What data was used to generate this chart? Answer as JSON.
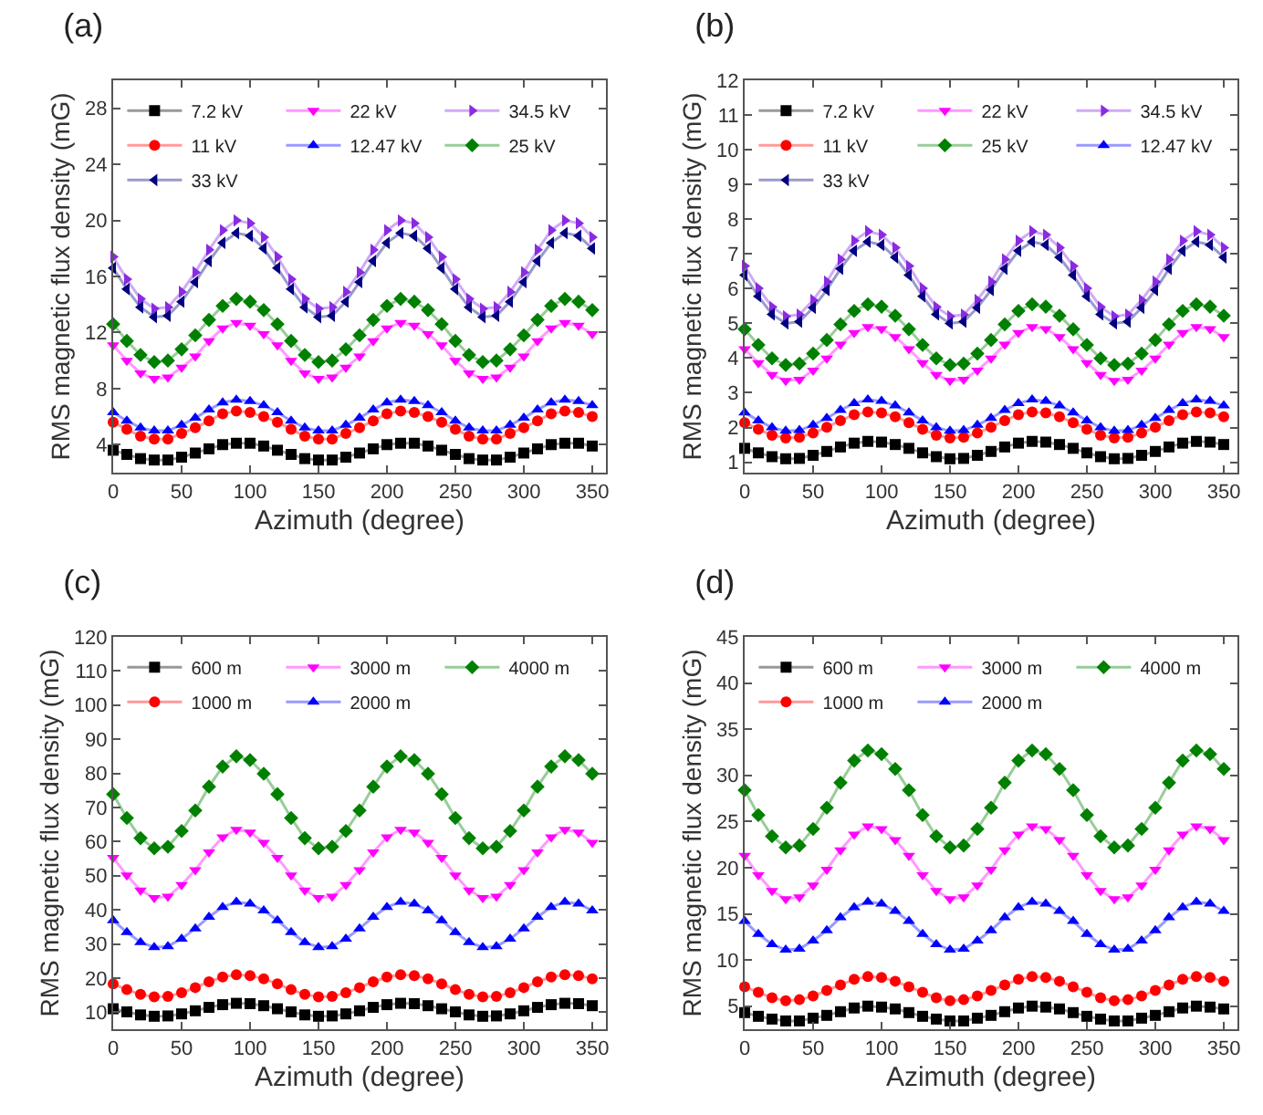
{
  "chart_data": [
    {
      "type": "line",
      "title": "(a)",
      "xlabel": "Azimuth (degree)",
      "ylabel": "RMS magnetic flux density (mG)",
      "x": [
        0,
        10,
        20,
        30,
        40,
        50,
        60,
        70,
        80,
        90,
        100,
        110,
        120,
        130,
        140,
        150,
        160,
        170,
        180,
        190,
        200,
        210,
        220,
        230,
        240,
        250,
        260,
        270,
        280,
        290,
        300,
        310,
        320,
        330,
        340,
        350
      ],
      "xlim": [
        0,
        360
      ],
      "xticks": [
        0,
        50,
        100,
        150,
        200,
        250,
        300,
        350
      ],
      "ylim": [
        2,
        30
      ],
      "yticks": [
        4,
        8,
        12,
        16,
        20,
        24,
        28
      ],
      "legend": "top left",
      "series": [
        {
          "name": "7.2 kV",
          "color": "#000000",
          "marker": "square",
          "values": [
            3.6,
            3.3,
            3.0,
            2.9,
            2.9,
            3.1,
            3.4,
            3.7,
            4.0,
            4.1,
            4.1,
            3.9,
            3.6,
            3.3,
            3.0,
            2.9,
            2.9,
            3.1,
            3.4,
            3.7,
            4.0,
            4.1,
            4.1,
            3.9,
            3.6,
            3.3,
            3.0,
            2.9,
            2.9,
            3.1,
            3.4,
            3.7,
            4.0,
            4.1,
            4.1,
            3.9
          ]
        },
        {
          "name": "22 kV",
          "color": "#ff00ff",
          "marker": "triangle-down",
          "values": [
            11.1,
            10.0,
            9.1,
            8.7,
            8.8,
            9.5,
            10.3,
            11.4,
            12.3,
            12.7,
            12.5,
            11.9,
            11.1,
            10.0,
            9.1,
            8.7,
            8.8,
            9.5,
            10.3,
            11.4,
            12.3,
            12.7,
            12.5,
            11.9,
            11.1,
            10.0,
            9.1,
            8.7,
            8.8,
            9.5,
            10.3,
            11.4,
            12.3,
            12.7,
            12.5,
            11.9
          ]
        },
        {
          "name": "34.5 kV",
          "color": "#8a2be2",
          "marker": "triangle-right",
          "values": [
            17.4,
            15.8,
            14.4,
            13.7,
            13.8,
            14.9,
            16.3,
            17.9,
            19.3,
            20.0,
            19.8,
            18.8,
            17.4,
            15.8,
            14.4,
            13.7,
            13.8,
            14.9,
            16.3,
            17.9,
            19.3,
            20.0,
            19.8,
            18.8,
            17.4,
            15.8,
            14.4,
            13.7,
            13.8,
            14.9,
            16.3,
            17.9,
            19.3,
            20.0,
            19.8,
            18.8
          ]
        },
        {
          "name": "11 kV",
          "color": "#ff0000",
          "marker": "circle",
          "values": [
            5.6,
            5.1,
            4.6,
            4.4,
            4.4,
            4.8,
            5.2,
            5.7,
            6.2,
            6.4,
            6.3,
            6.0,
            5.6,
            5.1,
            4.6,
            4.4,
            4.4,
            4.8,
            5.2,
            5.7,
            6.2,
            6.4,
            6.3,
            6.0,
            5.6,
            5.1,
            4.6,
            4.4,
            4.4,
            4.8,
            5.2,
            5.7,
            6.2,
            6.4,
            6.3,
            6.0
          ]
        },
        {
          "name": "12.47 kV",
          "color": "#0000ff",
          "marker": "triangle",
          "values": [
            6.3,
            5.7,
            5.2,
            5.0,
            5.0,
            5.4,
            5.9,
            6.5,
            7.0,
            7.2,
            7.1,
            6.8,
            6.3,
            5.7,
            5.2,
            5.0,
            5.0,
            5.4,
            5.9,
            6.5,
            7.0,
            7.2,
            7.1,
            6.8,
            6.3,
            5.7,
            5.2,
            5.0,
            5.0,
            5.4,
            5.9,
            6.5,
            7.0,
            7.2,
            7.1,
            6.8
          ]
        },
        {
          "name": "25 kV",
          "color": "#008000",
          "marker": "diamond",
          "values": [
            12.6,
            11.4,
            10.4,
            9.9,
            10.0,
            10.8,
            11.8,
            12.9,
            13.9,
            14.4,
            14.2,
            13.6,
            12.6,
            11.4,
            10.4,
            9.9,
            10.0,
            10.8,
            11.8,
            12.9,
            13.9,
            14.4,
            14.2,
            13.6,
            12.6,
            11.4,
            10.4,
            9.9,
            10.0,
            10.8,
            11.8,
            12.9,
            13.9,
            14.4,
            14.2,
            13.6
          ]
        },
        {
          "name": "33 kV",
          "color": "#000080",
          "marker": "triangle-left",
          "values": [
            16.6,
            15.1,
            13.8,
            13.1,
            13.2,
            14.2,
            15.6,
            17.1,
            18.4,
            19.1,
            18.9,
            18.0,
            16.6,
            15.1,
            13.8,
            13.1,
            13.2,
            14.2,
            15.6,
            17.1,
            18.4,
            19.1,
            18.9,
            18.0,
            16.6,
            15.1,
            13.8,
            13.1,
            13.2,
            14.2,
            15.6,
            17.1,
            18.4,
            19.1,
            18.9,
            18.0
          ]
        }
      ]
    },
    {
      "type": "line",
      "title": "(b)",
      "xlabel": "Azimuth (degree)",
      "ylabel": "RMS magnetic flux density (mG)",
      "x": [
        0,
        10,
        20,
        30,
        40,
        50,
        60,
        70,
        80,
        90,
        100,
        110,
        120,
        130,
        140,
        150,
        160,
        170,
        180,
        190,
        200,
        210,
        220,
        230,
        240,
        250,
        260,
        270,
        280,
        290,
        300,
        310,
        320,
        330,
        340,
        350
      ],
      "xlim": [
        0,
        360
      ],
      "xticks": [
        0,
        50,
        100,
        150,
        200,
        250,
        300,
        350
      ],
      "ylim": [
        0.7,
        12
      ],
      "yticks": [
        1,
        2,
        3,
        4,
        5,
        6,
        7,
        8,
        9,
        10,
        11,
        12
      ],
      "legend": "top left",
      "series": [
        {
          "name": "7.2 kV",
          "color": "#000000",
          "marker": "square",
          "values": [
            1.4,
            1.27,
            1.16,
            1.1,
            1.11,
            1.2,
            1.31,
            1.44,
            1.55,
            1.6,
            1.58,
            1.51,
            1.4,
            1.27,
            1.16,
            1.1,
            1.11,
            1.2,
            1.31,
            1.44,
            1.55,
            1.6,
            1.58,
            1.51,
            1.4,
            1.27,
            1.16,
            1.1,
            1.11,
            1.2,
            1.31,
            1.44,
            1.55,
            1.6,
            1.58,
            1.51
          ]
        },
        {
          "name": "22 kV",
          "color": "#ff00ff",
          "marker": "triangle-down",
          "values": [
            4.26,
            3.86,
            3.52,
            3.35,
            3.38,
            3.64,
            3.99,
            4.39,
            4.73,
            4.9,
            4.84,
            4.61,
            4.26,
            3.86,
            3.52,
            3.35,
            3.38,
            3.64,
            3.99,
            4.39,
            4.73,
            4.9,
            4.84,
            4.61,
            4.26,
            3.86,
            3.52,
            3.35,
            3.38,
            3.64,
            3.99,
            4.39,
            4.73,
            4.9,
            4.84,
            4.61
          ]
        },
        {
          "name": "34.5 kV",
          "color": "#8a2be2",
          "marker": "triangle-right",
          "values": [
            6.65,
            6.01,
            5.47,
            5.2,
            5.25,
            5.67,
            6.2,
            6.84,
            7.38,
            7.65,
            7.55,
            7.18,
            6.65,
            6.01,
            5.47,
            5.2,
            5.25,
            5.67,
            6.2,
            6.84,
            7.38,
            7.65,
            7.55,
            7.18,
            6.65,
            6.01,
            5.47,
            5.2,
            5.25,
            5.67,
            6.2,
            6.84,
            7.38,
            7.65,
            7.55,
            7.18
          ]
        },
        {
          "name": "11 kV",
          "color": "#ff0000",
          "marker": "circle",
          "values": [
            2.14,
            1.95,
            1.78,
            1.7,
            1.72,
            1.84,
            2.01,
            2.2,
            2.37,
            2.45,
            2.42,
            2.31,
            2.14,
            1.95,
            1.78,
            1.7,
            1.72,
            1.84,
            2.01,
            2.2,
            2.37,
            2.45,
            2.42,
            2.31,
            2.14,
            1.95,
            1.78,
            1.7,
            1.72,
            1.84,
            2.01,
            2.2,
            2.37,
            2.45,
            2.42,
            2.31
          ]
        },
        {
          "name": "25 kV",
          "color": "#008000",
          "marker": "diamond",
          "values": [
            4.83,
            4.38,
            3.99,
            3.8,
            3.84,
            4.13,
            4.52,
            4.97,
            5.36,
            5.55,
            5.48,
            5.22,
            4.83,
            4.38,
            3.99,
            3.8,
            3.84,
            4.13,
            4.52,
            4.97,
            5.36,
            5.55,
            5.48,
            5.22,
            4.83,
            4.38,
            3.99,
            3.8,
            3.84,
            4.13,
            4.52,
            4.97,
            5.36,
            5.55,
            5.48,
            5.22
          ]
        },
        {
          "name": "12.47 kV",
          "color": "#0000ff",
          "marker": "triangle",
          "values": [
            2.43,
            2.2,
            2.0,
            1.9,
            1.92,
            2.07,
            2.27,
            2.5,
            2.7,
            2.8,
            2.76,
            2.63,
            2.43,
            2.2,
            2.0,
            1.9,
            1.92,
            2.07,
            2.27,
            2.5,
            2.7,
            2.8,
            2.76,
            2.63,
            2.43,
            2.2,
            2.0,
            1.9,
            1.92,
            2.07,
            2.27,
            2.5,
            2.7,
            2.8,
            2.76,
            2.63
          ]
        },
        {
          "name": "33 kV",
          "color": "#000080",
          "marker": "triangle-left",
          "values": [
            6.39,
            5.78,
            5.26,
            5.0,
            5.05,
            5.45,
            5.96,
            6.57,
            7.09,
            7.35,
            7.26,
            6.9,
            6.39,
            5.78,
            5.26,
            5.0,
            5.05,
            5.45,
            5.96,
            6.57,
            7.09,
            7.35,
            7.26,
            6.9,
            6.39,
            5.78,
            5.26,
            5.0,
            5.05,
            5.45,
            5.96,
            6.57,
            7.09,
            7.35,
            7.26,
            6.9
          ]
        }
      ]
    },
    {
      "type": "line",
      "title": "(c)",
      "xlabel": "Azimuth (degree)",
      "ylabel": "RMS magnetic flux density (mG)",
      "x": [
        0,
        10,
        20,
        30,
        40,
        50,
        60,
        70,
        80,
        90,
        100,
        110,
        120,
        130,
        140,
        150,
        160,
        170,
        180,
        190,
        200,
        210,
        220,
        230,
        240,
        250,
        260,
        270,
        280,
        290,
        300,
        310,
        320,
        330,
        340,
        350
      ],
      "xlim": [
        0,
        360
      ],
      "xticks": [
        0,
        50,
        100,
        150,
        200,
        250,
        300,
        350
      ],
      "ylim": [
        5,
        120
      ],
      "yticks": [
        10,
        20,
        30,
        40,
        50,
        60,
        70,
        80,
        90,
        100,
        110,
        120
      ],
      "legend": "top left",
      "series": [
        {
          "name": "600 m",
          "color": "#000000",
          "marker": "square",
          "values": [
            11.0,
            10.1,
            9.2,
            8.8,
            8.9,
            9.5,
            10.4,
            11.4,
            12.2,
            12.6,
            12.5,
            11.9,
            11.0,
            10.1,
            9.2,
            8.8,
            8.9,
            9.5,
            10.4,
            11.4,
            12.2,
            12.6,
            12.5,
            11.9,
            11.0,
            10.1,
            9.2,
            8.8,
            8.9,
            9.5,
            10.4,
            11.4,
            12.2,
            12.6,
            12.5,
            11.9
          ]
        },
        {
          "name": "3000 m",
          "color": "#ff00ff",
          "marker": "triangle-down",
          "values": [
            55.3,
            50.1,
            45.7,
            43.5,
            43.9,
            47.3,
            51.7,
            56.9,
            61.3,
            63.5,
            62.7,
            59.7,
            55.3,
            50.1,
            45.7,
            43.5,
            43.9,
            47.3,
            51.7,
            56.9,
            61.3,
            63.5,
            62.7,
            59.7,
            55.3,
            50.1,
            45.7,
            43.5,
            43.9,
            47.3,
            51.7,
            56.9,
            61.3,
            63.5,
            62.7,
            59.7
          ]
        },
        {
          "name": "4000 m",
          "color": "#008000",
          "marker": "diamond",
          "values": [
            73.9,
            66.9,
            61.0,
            58.0,
            58.5,
            63.1,
            69.1,
            76.1,
            82.0,
            85.0,
            83.9,
            79.9,
            73.9,
            66.9,
            61.0,
            58.0,
            58.5,
            63.1,
            69.1,
            76.1,
            82.0,
            85.0,
            83.9,
            79.9,
            73.9,
            66.9,
            61.0,
            58.0,
            58.5,
            63.1,
            69.1,
            76.1,
            82.0,
            85.0,
            83.9,
            79.9
          ]
        },
        {
          "name": "1000 m",
          "color": "#ff0000",
          "marker": "circle",
          "values": [
            18.3,
            16.6,
            15.2,
            14.5,
            14.6,
            15.7,
            17.2,
            18.9,
            20.3,
            21.0,
            20.7,
            19.8,
            18.3,
            16.6,
            15.2,
            14.5,
            14.6,
            15.7,
            17.2,
            18.9,
            20.3,
            21.0,
            20.7,
            19.8,
            18.3,
            16.6,
            15.2,
            14.5,
            14.6,
            15.7,
            17.2,
            18.9,
            20.3,
            21.0,
            20.7,
            19.8
          ]
        },
        {
          "name": "2000 m",
          "color": "#0000ff",
          "marker": "triangle",
          "values": [
            36.9,
            33.4,
            30.5,
            29.0,
            29.3,
            31.5,
            34.5,
            37.9,
            40.8,
            42.3,
            41.8,
            39.8,
            36.9,
            33.4,
            30.5,
            29.0,
            29.3,
            31.5,
            34.5,
            37.9,
            40.8,
            42.3,
            41.8,
            39.8,
            36.9,
            33.4,
            30.5,
            29.0,
            29.3,
            31.5,
            34.5,
            37.9,
            40.8,
            42.3,
            41.8,
            39.8
          ]
        }
      ]
    },
    {
      "type": "line",
      "title": "(d)",
      "xlabel": "Azimuth (degree)",
      "ylabel": "RMS magnetic flux density (mG)",
      "x": [
        0,
        10,
        20,
        30,
        40,
        50,
        60,
        70,
        80,
        90,
        100,
        110,
        120,
        130,
        140,
        150,
        160,
        170,
        180,
        190,
        200,
        210,
        220,
        230,
        240,
        250,
        260,
        270,
        280,
        290,
        300,
        310,
        320,
        330,
        340,
        350
      ],
      "xlim": [
        0,
        360
      ],
      "xticks": [
        0,
        50,
        100,
        150,
        200,
        250,
        300,
        350
      ],
      "ylim": [
        2.5,
        45
      ],
      "yticks": [
        5,
        10,
        15,
        20,
        25,
        30,
        35,
        40,
        45
      ],
      "legend": "top left",
      "series": [
        {
          "name": "600 m",
          "color": "#000000",
          "marker": "square",
          "values": [
            4.3,
            3.9,
            3.6,
            3.4,
            3.4,
            3.7,
            4.0,
            4.4,
            4.8,
            5.0,
            4.9,
            4.7,
            4.3,
            3.9,
            3.6,
            3.4,
            3.4,
            3.7,
            4.0,
            4.4,
            4.8,
            5.0,
            4.9,
            4.7,
            4.3,
            3.9,
            3.6,
            3.4,
            3.4,
            3.7,
            4.0,
            4.4,
            4.8,
            5.0,
            4.9,
            4.7
          ]
        },
        {
          "name": "3000 m",
          "color": "#ff00ff",
          "marker": "triangle-down",
          "values": [
            21.3,
            19.2,
            17.5,
            16.6,
            16.8,
            18.1,
            19.8,
            21.9,
            23.6,
            24.5,
            24.2,
            23.0,
            21.3,
            19.2,
            17.5,
            16.6,
            16.8,
            18.1,
            19.8,
            21.9,
            23.6,
            24.5,
            24.2,
            23.0,
            21.3,
            19.2,
            17.5,
            16.6,
            16.8,
            18.1,
            19.8,
            21.9,
            23.6,
            24.5,
            24.2,
            23.0
          ]
        },
        {
          "name": "4000 m",
          "color": "#008000",
          "marker": "diamond",
          "values": [
            28.4,
            25.7,
            23.4,
            22.2,
            22.4,
            24.2,
            26.5,
            29.2,
            31.6,
            32.7,
            32.3,
            30.7,
            28.4,
            25.7,
            23.4,
            22.2,
            22.4,
            24.2,
            26.5,
            29.2,
            31.6,
            32.7,
            32.3,
            30.7,
            28.4,
            25.7,
            23.4,
            22.2,
            22.4,
            24.2,
            26.5,
            29.2,
            31.6,
            32.7,
            32.3,
            30.7
          ]
        },
        {
          "name": "1000 m",
          "color": "#ff0000",
          "marker": "circle",
          "values": [
            7.1,
            6.5,
            5.9,
            5.6,
            5.7,
            6.1,
            6.7,
            7.3,
            7.9,
            8.2,
            8.1,
            7.7,
            7.1,
            6.5,
            5.9,
            5.6,
            5.7,
            6.1,
            6.7,
            7.3,
            7.9,
            8.2,
            8.1,
            7.7,
            7.1,
            6.5,
            5.9,
            5.6,
            5.7,
            6.1,
            6.7,
            7.3,
            7.9,
            8.2,
            8.1,
            7.7
          ]
        },
        {
          "name": "2000 m",
          "color": "#0000ff",
          "marker": "triangle",
          "values": [
            14.2,
            12.8,
            11.7,
            11.1,
            11.2,
            12.1,
            13.2,
            14.6,
            15.7,
            16.3,
            16.1,
            15.3,
            14.2,
            12.8,
            11.7,
            11.1,
            11.2,
            12.1,
            13.2,
            14.6,
            15.7,
            16.3,
            16.1,
            15.3,
            14.2,
            12.8,
            11.7,
            11.1,
            11.2,
            12.1,
            13.2,
            14.6,
            15.7,
            16.3,
            16.1,
            15.3
          ]
        }
      ]
    }
  ]
}
